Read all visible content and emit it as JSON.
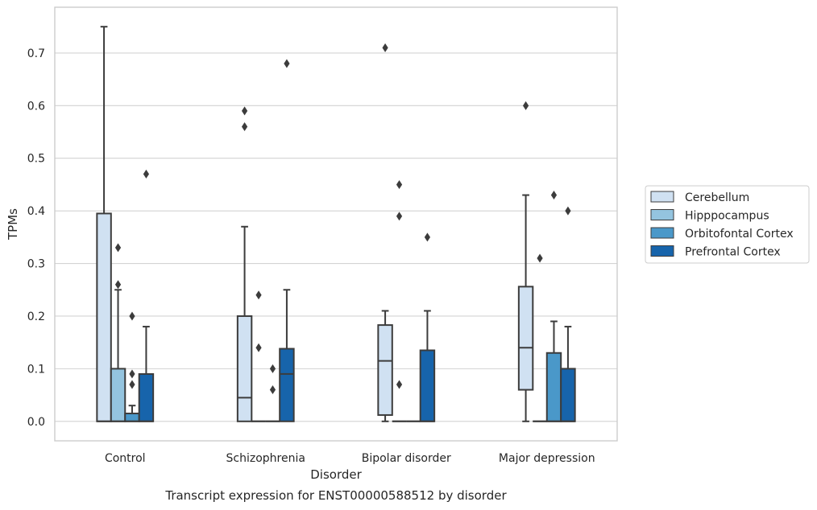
{
  "chart_data": {
    "type": "box",
    "caption": "Transcript expression for ENST00000588512 by disorder",
    "xlabel": "Disorder",
    "ylabel": "TPMs",
    "ylim": [
      -0.037,
      0.787
    ],
    "yticks": [
      0.0,
      0.1,
      0.2,
      0.3,
      0.4,
      0.5,
      0.6,
      0.7
    ],
    "ytick_labels": [
      "0.0",
      "0.1",
      "0.2",
      "0.3",
      "0.4",
      "0.5",
      "0.6",
      "0.7"
    ],
    "grid": "horizontal",
    "legend_position": "right",
    "categories": [
      "Control",
      "Schizophrenia",
      "Bipolar disorder",
      "Major depression"
    ],
    "series": [
      {
        "name": "Cerebellum",
        "color": "#d0e1f2",
        "boxes": [
          {
            "whisker_low": 0.0,
            "q1": 0.0,
            "median": 0.0,
            "q3": 0.395,
            "whisker_high": 0.75,
            "outliers": []
          },
          {
            "whisker_low": 0.0,
            "q1": 0.0,
            "median": 0.045,
            "q3": 0.2,
            "whisker_high": 0.37,
            "outliers": [
              0.56,
              0.59
            ]
          },
          {
            "whisker_low": 0.0,
            "q1": 0.012,
            "median": 0.115,
            "q3": 0.183,
            "whisker_high": 0.21,
            "outliers": [
              0.71
            ]
          },
          {
            "whisker_low": 0.0,
            "q1": 0.06,
            "median": 0.14,
            "q3": 0.256,
            "whisker_high": 0.43,
            "outliers": [
              0.6
            ]
          }
        ]
      },
      {
        "name": "Hipppocampus",
        "color": "#94c4df",
        "boxes": [
          {
            "whisker_low": 0.0,
            "q1": 0.0,
            "median": 0.0,
            "q3": 0.1,
            "whisker_high": 0.25,
            "outliers": [
              0.26,
              0.33
            ]
          },
          {
            "whisker_low": 0.0,
            "q1": 0.0,
            "median": 0.0,
            "q3": 0.0,
            "whisker_high": 0.0,
            "outliers": [
              0.14,
              0.24
            ]
          },
          {
            "whisker_low": 0.0,
            "q1": 0.0,
            "median": 0.0,
            "q3": 0.0,
            "whisker_high": 0.0,
            "outliers": [
              0.07,
              0.39,
              0.45
            ]
          },
          {
            "whisker_low": 0.0,
            "q1": 0.0,
            "median": 0.0,
            "q3": 0.0,
            "whisker_high": 0.0,
            "outliers": [
              0.31
            ]
          }
        ]
      },
      {
        "name": "Orbitofontal Cortex",
        "color": "#4a98c9",
        "boxes": [
          {
            "whisker_low": 0.0,
            "q1": 0.0,
            "median": 0.0,
            "q3": 0.015,
            "whisker_high": 0.03,
            "outliers": [
              0.07,
              0.09,
              0.2
            ]
          },
          {
            "whisker_low": 0.0,
            "q1": 0.0,
            "median": 0.0,
            "q3": 0.0,
            "whisker_high": 0.0,
            "outliers": [
              0.06,
              0.1
            ]
          },
          {
            "whisker_low": 0.0,
            "q1": 0.0,
            "median": 0.0,
            "q3": 0.0,
            "whisker_high": 0.0,
            "outliers": []
          },
          {
            "whisker_low": 0.0,
            "q1": 0.0,
            "median": 0.0,
            "q3": 0.13,
            "whisker_high": 0.19,
            "outliers": [
              0.43
            ]
          }
        ]
      },
      {
        "name": "Prefrontal Cortex",
        "color": "#1764ab",
        "boxes": [
          {
            "whisker_low": 0.0,
            "q1": 0.0,
            "median": 0.0,
            "q3": 0.09,
            "whisker_high": 0.18,
            "outliers": [
              0.47
            ]
          },
          {
            "whisker_low": 0.0,
            "q1": 0.0,
            "median": 0.09,
            "q3": 0.138,
            "whisker_high": 0.25,
            "outliers": [
              0.68
            ]
          },
          {
            "whisker_low": 0.0,
            "q1": 0.0,
            "median": 0.0,
            "q3": 0.135,
            "whisker_high": 0.21,
            "outliers": [
              0.35
            ]
          },
          {
            "whisker_low": 0.0,
            "q1": 0.0,
            "median": 0.0,
            "q3": 0.1,
            "whisker_high": 0.18,
            "outliers": [
              0.4
            ]
          }
        ]
      }
    ]
  }
}
